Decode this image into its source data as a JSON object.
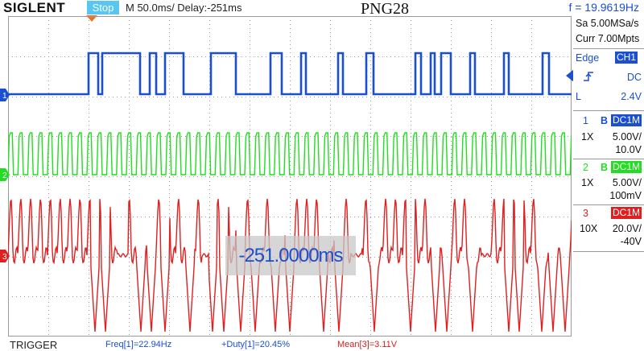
{
  "header": {
    "logo": "SIGLENT",
    "run_state": "Stop",
    "timebase": "M 50.0ms/ Delay:-251ms",
    "title": "PNG28",
    "frequency": "f = 19.9619Hz"
  },
  "side_panel": {
    "sample_rate": "Sa 5.00MSa/s",
    "memory": "Curr 7.00Mpts",
    "trigger": {
      "mode": "Edge",
      "source": "CH1",
      "coupling": "DC",
      "level_label": "L",
      "level": "2.4V"
    },
    "channels": [
      {
        "number": "1",
        "b": "B",
        "coupling": "DC1M",
        "probe": "1X",
        "scale": "5.00V/",
        "offset": "10.0V",
        "color": "#1a4fd0"
      },
      {
        "number": "2",
        "b": "B",
        "coupling": "DC1M",
        "probe": "1X",
        "scale": "5.00V/",
        "offset": "100mV",
        "color": "#22dd22"
      },
      {
        "number": "3",
        "coupling": "DC1M",
        "probe": "10X",
        "scale": "20.0V/",
        "offset": "-40V",
        "color": "#e02020"
      }
    ]
  },
  "overlay": {
    "delay_text": "-251.0000ms"
  },
  "bottom": {
    "label": "TRIGGER",
    "measurements": [
      "Freq[1]=22.94Hz",
      "+Duty[1]=20.45%",
      "Mean[3]=3.11V"
    ]
  },
  "colors": {
    "ch1": "#1a4fd0",
    "ch2": "#22dd22",
    "ch3": "#e02020",
    "grid": "#9a9a9a"
  },
  "markers": [
    "1",
    "2",
    "3"
  ]
}
